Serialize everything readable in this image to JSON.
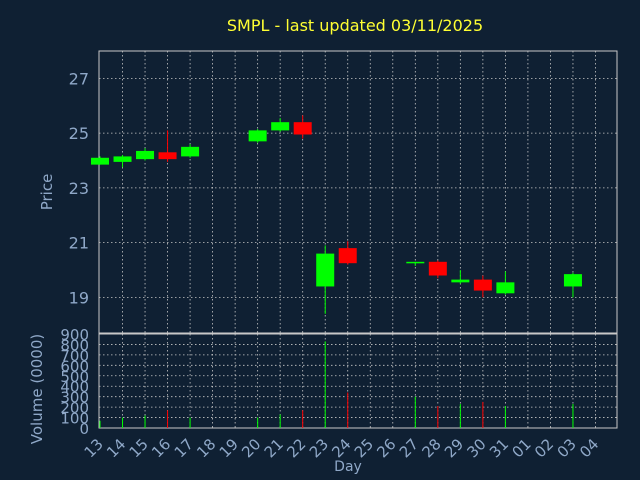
{
  "chart_data": {
    "type": "candlestick",
    "title": "SMPL - last updated 03/11/2025",
    "colors": {
      "background": "#0f2033",
      "up": "#00ff00",
      "down": "#ff0000",
      "title": "#ffff33",
      "text": "#8fa8c8",
      "grid": "#c8c8c8"
    },
    "x_labels": [
      "13",
      "14",
      "15",
      "16",
      "17",
      "18",
      "19",
      "20",
      "21",
      "22",
      "23",
      "24",
      "25",
      "26",
      "27",
      "28",
      "29",
      "30",
      "31",
      "01",
      "02",
      "03",
      "04"
    ],
    "xlabel": "Day",
    "price": {
      "ylabel": "Price",
      "ylim": [
        17.7,
        28.0
      ],
      "ticks": [
        19,
        21,
        23,
        25,
        27
      ],
      "candles": [
        {
          "day": "13",
          "open": 23.85,
          "high": 24.15,
          "low": 23.85,
          "close": 24.1
        },
        {
          "day": "14",
          "open": 23.95,
          "high": 24.2,
          "low": 23.75,
          "close": 24.15
        },
        {
          "day": "15",
          "open": 24.05,
          "high": 24.45,
          "low": 24.0,
          "close": 24.35
        },
        {
          "day": "16",
          "open": 24.3,
          "high": 25.1,
          "low": 23.95,
          "close": 24.05
        },
        {
          "day": "17",
          "open": 24.15,
          "high": 24.6,
          "low": 24.1,
          "close": 24.5
        },
        {
          "day": "20",
          "open": 24.7,
          "high": 25.15,
          "low": 24.65,
          "close": 25.1
        },
        {
          "day": "21",
          "open": 25.1,
          "high": 25.55,
          "low": 25.05,
          "close": 25.4
        },
        {
          "day": "22",
          "open": 25.4,
          "high": 25.65,
          "low": 24.8,
          "close": 24.95
        },
        {
          "day": "23",
          "open": 19.4,
          "high": 20.9,
          "low": 18.4,
          "close": 20.6
        },
        {
          "day": "24",
          "open": 20.8,
          "high": 21.05,
          "low": 20.2,
          "close": 20.25
        },
        {
          "day": "27",
          "open": 20.25,
          "high": 20.3,
          "low": 20.15,
          "close": 20.3
        },
        {
          "day": "28",
          "open": 20.3,
          "high": 20.35,
          "low": 19.7,
          "close": 19.8
        },
        {
          "day": "29",
          "open": 19.55,
          "high": 20.0,
          "low": 19.5,
          "close": 19.65
        },
        {
          "day": "30",
          "open": 19.65,
          "high": 19.8,
          "low": 19.0,
          "close": 19.25
        },
        {
          "day": "31",
          "open": 19.15,
          "high": 19.95,
          "low": 19.1,
          "close": 19.55
        },
        {
          "day": "03",
          "open": 19.4,
          "high": 19.9,
          "low": 19.0,
          "close": 19.85
        }
      ]
    },
    "volume": {
      "ylabel": "Volume (0000)",
      "ylim": [
        0,
        900
      ],
      "ticks": [
        0,
        100,
        200,
        300,
        400,
        500,
        600,
        700,
        800,
        900
      ],
      "bars": [
        {
          "day": "13",
          "value": 70,
          "dir": "up"
        },
        {
          "day": "14",
          "value": 100,
          "dir": "up"
        },
        {
          "day": "15",
          "value": 120,
          "dir": "up"
        },
        {
          "day": "16",
          "value": 170,
          "dir": "down"
        },
        {
          "day": "17",
          "value": 100,
          "dir": "up"
        },
        {
          "day": "20",
          "value": 100,
          "dir": "up"
        },
        {
          "day": "21",
          "value": 130,
          "dir": "up"
        },
        {
          "day": "22",
          "value": 170,
          "dir": "down"
        },
        {
          "day": "23",
          "value": 830,
          "dir": "up"
        },
        {
          "day": "24",
          "value": 340,
          "dir": "down"
        },
        {
          "day": "27",
          "value": 300,
          "dir": "up"
        },
        {
          "day": "28",
          "value": 210,
          "dir": "down"
        },
        {
          "day": "29",
          "value": 230,
          "dir": "up"
        },
        {
          "day": "30",
          "value": 250,
          "dir": "down"
        },
        {
          "day": "31",
          "value": 210,
          "dir": "up"
        },
        {
          "day": "03",
          "value": 230,
          "dir": "up"
        }
      ]
    },
    "grid": true
  }
}
